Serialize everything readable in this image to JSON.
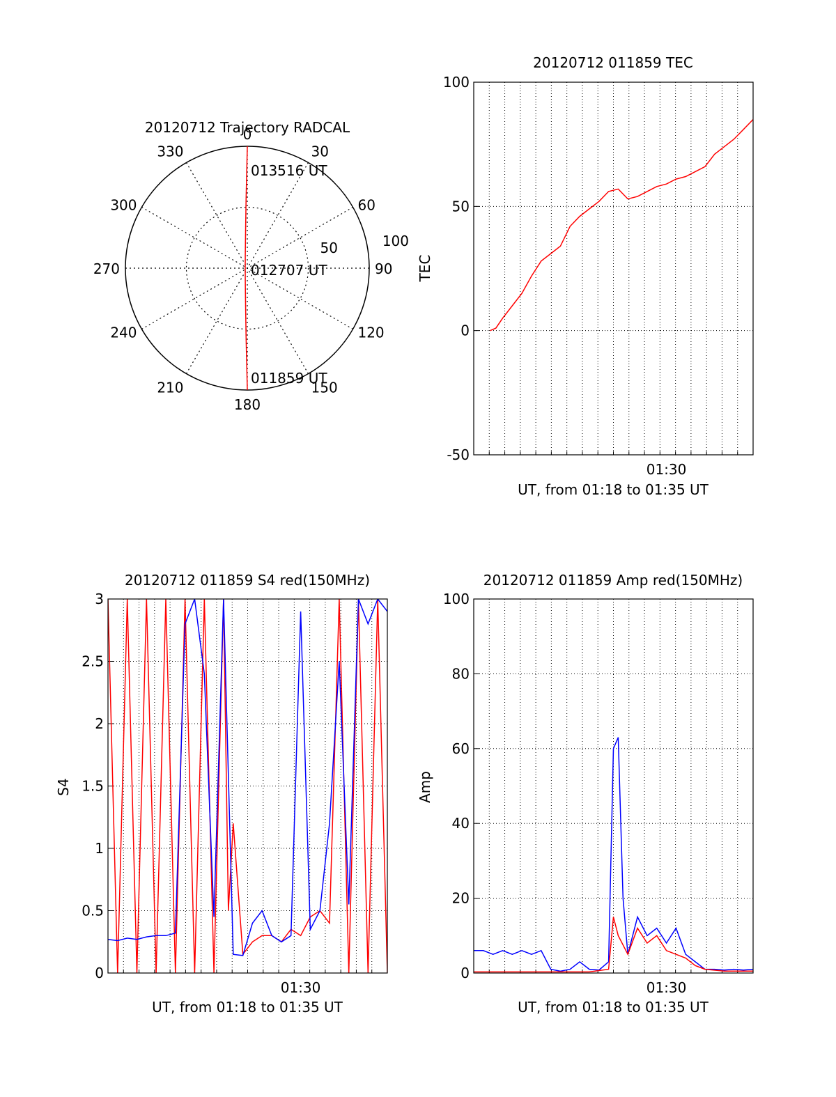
{
  "colors": {
    "primary": "#ff0000",
    "secondary": "#0000ff",
    "axis": "#000000",
    "grid": "#000000"
  },
  "chart_data": [
    {
      "id": "trajectory",
      "type": "polar",
      "title": "20120712 Trajectory RADCAL",
      "angle_labels": [
        "0",
        "30",
        "60",
        "90",
        "120",
        "150",
        "180",
        "210",
        "240",
        "270",
        "300",
        "330"
      ],
      "radius_max": 100,
      "radius_labels": [
        "50",
        "100"
      ],
      "point_labels": [
        {
          "text": "013516 UT",
          "az": 0,
          "zenith_deg": 90
        },
        {
          "text": "012707 UT",
          "az": 180,
          "zenith_deg": 1
        },
        {
          "text": "011859 UT",
          "az": 180,
          "zenith_deg": 90
        }
      ],
      "trajectory": [
        [
          0,
          90
        ],
        [
          0,
          70
        ],
        [
          0,
          50
        ],
        [
          0,
          30
        ],
        [
          0,
          10
        ],
        [
          0,
          0
        ],
        [
          180,
          10
        ],
        [
          180,
          30
        ],
        [
          180,
          50
        ],
        [
          180,
          70
        ],
        [
          180,
          90
        ]
      ],
      "grid": true
    },
    {
      "id": "tec",
      "type": "line",
      "title": "20120712 011859 TEC",
      "ylabel": "TEC",
      "xlabel": "UT, from 01:18 to 01:35 UT",
      "xlim": [
        1.3,
        1.59
      ],
      "ylim": [
        -50,
        100
      ],
      "yticks": [
        -50,
        0,
        50,
        100
      ],
      "xticks": [
        {
          "value": 1.5,
          "label": "01:30"
        }
      ],
      "grid": true,
      "series": [
        {
          "color": "#ff0000",
          "x": [
            1.317,
            1.323,
            1.33,
            1.34,
            1.35,
            1.36,
            1.37,
            1.38,
            1.39,
            1.4,
            1.41,
            1.42,
            1.43,
            1.44,
            1.45,
            1.46,
            1.47,
            1.48,
            1.49,
            1.5,
            1.51,
            1.52,
            1.53,
            1.54,
            1.55,
            1.56,
            1.57,
            1.58,
            1.59
          ],
          "y": [
            0,
            1,
            5,
            10,
            15,
            22,
            28,
            31,
            34,
            42,
            46,
            49,
            52,
            56,
            57,
            53,
            54,
            56,
            58,
            59,
            61,
            62,
            64,
            66,
            71,
            74,
            77,
            81,
            85
          ]
        }
      ]
    },
    {
      "id": "s4",
      "type": "line",
      "title": "20120712 011859 S4 red(150MHz)",
      "ylabel": "S4",
      "xlabel": "UT, from 01:18 to 01:35 UT",
      "xlim": [
        1.3,
        1.59
      ],
      "ylim": [
        0,
        3
      ],
      "yticks": [
        0,
        0.5,
        1,
        1.5,
        2,
        2.5,
        3
      ],
      "ytick_labels": [
        "0",
        "0.5",
        "1",
        "1.5",
        "2",
        "2.5",
        "3"
      ],
      "xticks": [
        {
          "value": 1.5,
          "label": "01:30"
        }
      ],
      "grid": true,
      "series": [
        {
          "color": "#ff0000",
          "x": [
            1.3,
            1.31,
            1.32,
            1.33,
            1.34,
            1.35,
            1.36,
            1.37,
            1.38,
            1.39,
            1.4,
            1.41,
            1.42,
            1.425,
            1.43,
            1.44,
            1.45,
            1.46,
            1.47,
            1.48,
            1.49,
            1.5,
            1.51,
            1.52,
            1.53,
            1.54,
            1.55,
            1.56,
            1.57,
            1.58,
            1.59
          ],
          "y": [
            3,
            0,
            3,
            0,
            3,
            0,
            3,
            0,
            3,
            0,
            3,
            0,
            3,
            0.5,
            1.2,
            0.15,
            0.25,
            0.3,
            0.3,
            0.25,
            0.35,
            0.3,
            0.45,
            0.5,
            0.4,
            3,
            0,
            3,
            0,
            3,
            0
          ]
        },
        {
          "color": "#0000ff",
          "x": [
            1.3,
            1.31,
            1.32,
            1.33,
            1.34,
            1.35,
            1.36,
            1.37,
            1.38,
            1.39,
            1.4,
            1.41,
            1.42,
            1.43,
            1.44,
            1.45,
            1.46,
            1.47,
            1.48,
            1.49,
            1.5,
            1.51,
            1.52,
            1.53,
            1.54,
            1.55,
            1.56,
            1.57,
            1.58,
            1.59
          ],
          "y": [
            0.27,
            0.26,
            0.28,
            0.27,
            0.29,
            0.3,
            0.3,
            0.32,
            2.8,
            3,
            2.4,
            0.45,
            3,
            0.15,
            0.14,
            0.4,
            0.5,
            0.3,
            0.25,
            0.3,
            2.9,
            0.35,
            0.5,
            1.2,
            2.5,
            0.55,
            3,
            2.8,
            3,
            2.9
          ]
        }
      ]
    },
    {
      "id": "amp",
      "type": "line",
      "title": "20120712 011859 Amp red(150MHz)",
      "ylabel": "Amp",
      "xlabel": "UT, from 01:18 to 01:35 UT",
      "xlim": [
        1.3,
        1.59
      ],
      "ylim": [
        0,
        100
      ],
      "yticks": [
        0,
        20,
        40,
        60,
        80,
        100
      ],
      "xticks": [
        {
          "value": 1.5,
          "label": "01:30"
        }
      ],
      "grid": true,
      "series": [
        {
          "color": "#0000ff",
          "x": [
            1.3,
            1.31,
            1.32,
            1.33,
            1.34,
            1.35,
            1.36,
            1.37,
            1.38,
            1.39,
            1.4,
            1.41,
            1.42,
            1.43,
            1.44,
            1.445,
            1.45,
            1.455,
            1.46,
            1.47,
            1.48,
            1.49,
            1.5,
            1.51,
            1.52,
            1.53,
            1.54,
            1.55,
            1.56,
            1.57,
            1.58,
            1.59
          ],
          "y": [
            6,
            6,
            5,
            6,
            5,
            6,
            5,
            6,
            1,
            0.5,
            1,
            3,
            1,
            0.8,
            3,
            60,
            63,
            20,
            5,
            15,
            10,
            12,
            8,
            12,
            5,
            3,
            1,
            1,
            0.8,
            1,
            0.8,
            1
          ]
        },
        {
          "color": "#ff0000",
          "x": [
            1.3,
            1.34,
            1.38,
            1.42,
            1.44,
            1.445,
            1.45,
            1.46,
            1.47,
            1.48,
            1.49,
            1.5,
            1.51,
            1.52,
            1.53,
            1.54,
            1.56,
            1.59
          ],
          "y": [
            0.3,
            0.3,
            0.3,
            0.3,
            1,
            15,
            10,
            5,
            12,
            8,
            10,
            6,
            5,
            4,
            2,
            1,
            0.5,
            0.5
          ]
        }
      ]
    }
  ]
}
